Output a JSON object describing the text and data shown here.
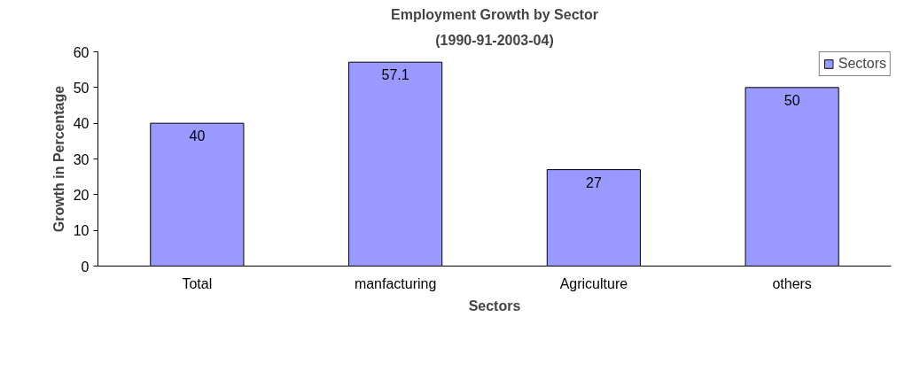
{
  "chart_data": {
    "type": "bar",
    "title": "Employment Growth by Sector",
    "subtitle": "(1990-91-2003-04)",
    "xlabel": "Sectors",
    "ylabel": "Growth in Percentage",
    "categories": [
      "Total",
      "manfacturing",
      "Agriculture",
      "others"
    ],
    "series": [
      {
        "name": "Sectors",
        "color": "#9999ff",
        "values": [
          40,
          57.1,
          27,
          50
        ]
      }
    ],
    "ylim": [
      0,
      60
    ],
    "yticks": [
      0,
      10,
      20,
      30,
      40,
      50,
      60
    ],
    "data_labels": true,
    "legend": "top right",
    "grid": false
  }
}
